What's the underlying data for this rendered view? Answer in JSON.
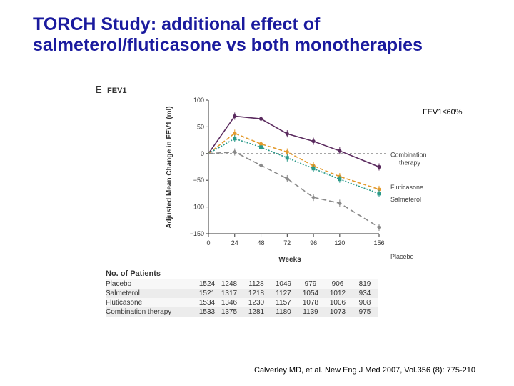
{
  "slide": {
    "title_line1": "TORCH Study: additional effect of",
    "title_line2": "salmeterol/fluticasone vs both monotherapies",
    "citation": "Calverley MD, et al. New Eng J Med 2007, Vol.356 (8): 775-210"
  },
  "chart_data": {
    "type": "line",
    "panel_letter": "E",
    "title": "FEV1",
    "annotation": "FEV1≤60%",
    "xlabel": "Weeks",
    "ylabel": "Adjusted Mean Change in FEV1 (ml)",
    "x": [
      0,
      24,
      48,
      72,
      96,
      120,
      156
    ],
    "xlim": [
      0,
      156
    ],
    "ylim": [
      -150,
      100
    ],
    "yticks": [
      100,
      50,
      0,
      -50,
      -100,
      -150
    ],
    "ytick_labels": [
      "100",
      "50",
      "0",
      "−50",
      "−100",
      "−150"
    ],
    "grid": false,
    "reference_line": 0,
    "series": [
      {
        "name": "Combination therapy",
        "label_line1": "Combination",
        "label_line2": "therapy",
        "color": "#5a2a5e",
        "dash": "",
        "marker": "circle",
        "values": [
          0,
          70,
          65,
          37,
          23,
          5,
          -25
        ]
      },
      {
        "name": "Fluticasone",
        "label_line1": "Fluticasone",
        "label_line2": "",
        "color": "#e39a2d",
        "dash": "5,3",
        "marker": "circle",
        "values": [
          0,
          38,
          18,
          3,
          -23,
          -43,
          -67
        ]
      },
      {
        "name": "Salmeterol",
        "label_line1": "Salmeterol",
        "label_line2": "",
        "color": "#2a9a8a",
        "dash": "2,2",
        "marker": "square",
        "values": [
          0,
          28,
          12,
          -8,
          -28,
          -48,
          -75
        ]
      },
      {
        "name": "Placebo",
        "label_line1": "Placebo",
        "label_line2": "",
        "color": "#8a8a8a",
        "dash": "7,4",
        "marker": "diamond",
        "values": [
          0,
          3,
          -22,
          -47,
          -82,
          -93,
          -138
        ]
      }
    ],
    "patients_table": {
      "title": "No. of Patients",
      "rows": [
        {
          "name": "Placebo",
          "values": [
            "1524",
            "1248",
            "1128",
            "1049",
            "979",
            "906",
            "819"
          ]
        },
        {
          "name": "Salmeterol",
          "values": [
            "1521",
            "1317",
            "1218",
            "1127",
            "1054",
            "1012",
            "934"
          ]
        },
        {
          "name": "Fluticasone",
          "values": [
            "1534",
            "1346",
            "1230",
            "1157",
            "1078",
            "1006",
            "908"
          ]
        },
        {
          "name": "Combination therapy",
          "values": [
            "1533",
            "1375",
            "1281",
            "1180",
            "1139",
            "1073",
            "975"
          ]
        }
      ]
    }
  }
}
